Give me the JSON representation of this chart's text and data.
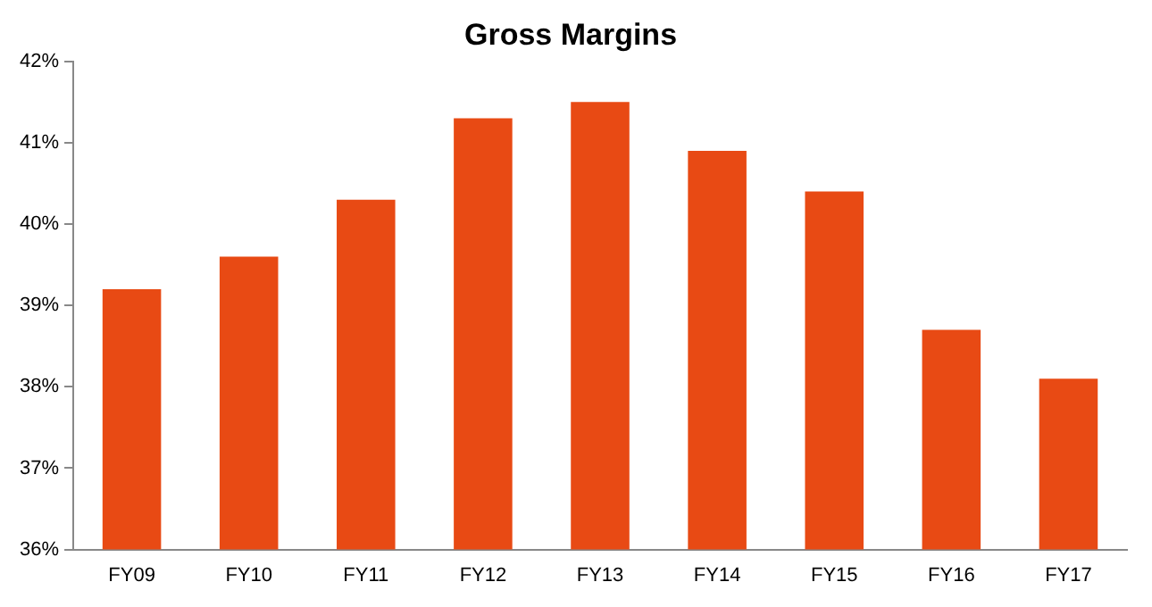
{
  "chart_data": {
    "type": "bar",
    "title": "Gross Margins",
    "categories": [
      "FY09",
      "FY10",
      "FY11",
      "FY12",
      "FY13",
      "FY14",
      "FY15",
      "FY16",
      "FY17"
    ],
    "values": [
      39.2,
      39.6,
      40.3,
      41.3,
      41.5,
      40.9,
      40.4,
      38.7,
      38.1
    ],
    "color": "#e84a14",
    "ylim": [
      36,
      42
    ],
    "yticks": [
      {
        "value": 36,
        "label": "36%"
      },
      {
        "value": 37,
        "label": "37%"
      },
      {
        "value": 38,
        "label": "38%"
      },
      {
        "value": 39,
        "label": "39%"
      },
      {
        "value": 40,
        "label": "40%"
      },
      {
        "value": 41,
        "label": "41%"
      },
      {
        "value": 42,
        "label": "42%"
      }
    ],
    "grid": false,
    "legend": false
  }
}
